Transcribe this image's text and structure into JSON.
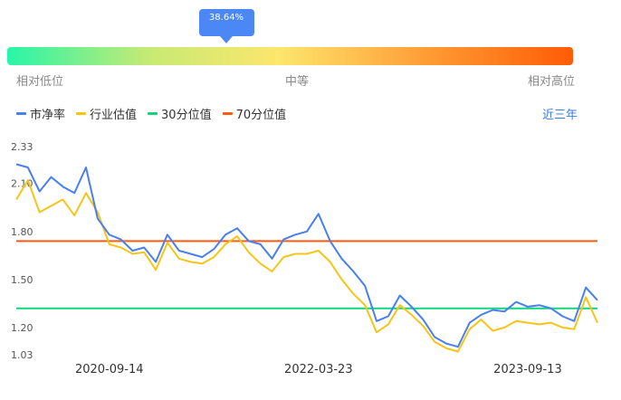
{
  "indicator": {
    "percent_label": "38.64%",
    "percentile": 38.64,
    "low_label": "相对低位",
    "mid_label": "中等",
    "high_label": "相对高位"
  },
  "legend": {
    "pb": "市净率",
    "industry": "行业估值",
    "p30": "30分位值",
    "p70": "70分位值"
  },
  "range_button": "近三年",
  "colors": {
    "pb": "#4a7ff0",
    "industry": "#f5c518",
    "p30": "#12d67c",
    "p70": "#ff5b14"
  },
  "chart_data": {
    "type": "line",
    "x_ticks": [
      "2020-09-14",
      "2022-03-23",
      "2023-09-13"
    ],
    "y_ticks": [
      2.33,
      2.1,
      1.8,
      1.5,
      1.2,
      1.03
    ],
    "ylim": [
      1.03,
      2.33
    ],
    "grid": false,
    "series": [
      {
        "name": "市净率",
        "x": [
          "2020-01",
          "2020-02",
          "2020-03",
          "2020-04",
          "2020-05",
          "2020-06",
          "2020-07",
          "2020-08",
          "2020-09",
          "2020-10",
          "2020-11",
          "2020-12",
          "2021-01",
          "2021-02",
          "2021-03",
          "2021-04",
          "2021-05",
          "2021-06",
          "2021-07",
          "2021-08",
          "2021-09",
          "2021-10",
          "2021-11",
          "2021-12",
          "2022-01",
          "2022-02",
          "2022-03",
          "2022-04",
          "2022-05",
          "2022-06",
          "2022-07",
          "2022-08",
          "2022-09",
          "2022-10",
          "2022-11",
          "2022-12",
          "2023-01",
          "2023-02",
          "2023-03",
          "2023-04",
          "2023-05",
          "2023-06",
          "2023-07",
          "2023-08",
          "2023-09",
          "2023-10",
          "2023-11",
          "2023-12",
          "2024-01",
          "2024-02",
          "2024-03"
        ],
        "values": [
          2.22,
          2.2,
          2.05,
          2.14,
          2.08,
          2.04,
          2.2,
          1.88,
          1.78,
          1.75,
          1.68,
          1.7,
          1.61,
          1.78,
          1.68,
          1.66,
          1.64,
          1.69,
          1.78,
          1.82,
          1.74,
          1.72,
          1.63,
          1.75,
          1.78,
          1.8,
          1.91,
          1.74,
          1.63,
          1.55,
          1.46,
          1.24,
          1.27,
          1.4,
          1.33,
          1.25,
          1.14,
          1.1,
          1.08,
          1.23,
          1.28,
          1.31,
          1.3,
          1.36,
          1.33,
          1.34,
          1.32,
          1.27,
          1.24,
          1.45,
          1.37
        ]
      },
      {
        "name": "行业估值",
        "x": [
          "2020-01",
          "2020-02",
          "2020-03",
          "2020-04",
          "2020-05",
          "2020-06",
          "2020-07",
          "2020-08",
          "2020-09",
          "2020-10",
          "2020-11",
          "2020-12",
          "2021-01",
          "2021-02",
          "2021-03",
          "2021-04",
          "2021-05",
          "2021-06",
          "2021-07",
          "2021-08",
          "2021-09",
          "2021-10",
          "2021-11",
          "2021-12",
          "2022-01",
          "2022-02",
          "2022-03",
          "2022-04",
          "2022-05",
          "2022-06",
          "2022-07",
          "2022-08",
          "2022-09",
          "2022-10",
          "2022-11",
          "2022-12",
          "2023-01",
          "2023-02",
          "2023-03",
          "2023-04",
          "2023-05",
          "2023-06",
          "2023-07",
          "2023-08",
          "2023-09",
          "2023-10",
          "2023-11",
          "2023-12",
          "2024-01",
          "2024-02",
          "2024-03"
        ],
        "values": [
          2.0,
          2.12,
          1.92,
          1.96,
          2.0,
          1.9,
          2.04,
          1.92,
          1.72,
          1.7,
          1.66,
          1.67,
          1.56,
          1.73,
          1.63,
          1.61,
          1.6,
          1.64,
          1.72,
          1.77,
          1.67,
          1.6,
          1.55,
          1.64,
          1.66,
          1.66,
          1.68,
          1.61,
          1.5,
          1.41,
          1.34,
          1.17,
          1.22,
          1.34,
          1.28,
          1.21,
          1.11,
          1.07,
          1.05,
          1.19,
          1.25,
          1.18,
          1.2,
          1.24,
          1.23,
          1.22,
          1.23,
          1.2,
          1.19,
          1.39,
          1.23
        ]
      },
      {
        "name": "30分位值",
        "constant": 1.32
      },
      {
        "name": "70分位值",
        "constant": 1.74
      }
    ]
  }
}
